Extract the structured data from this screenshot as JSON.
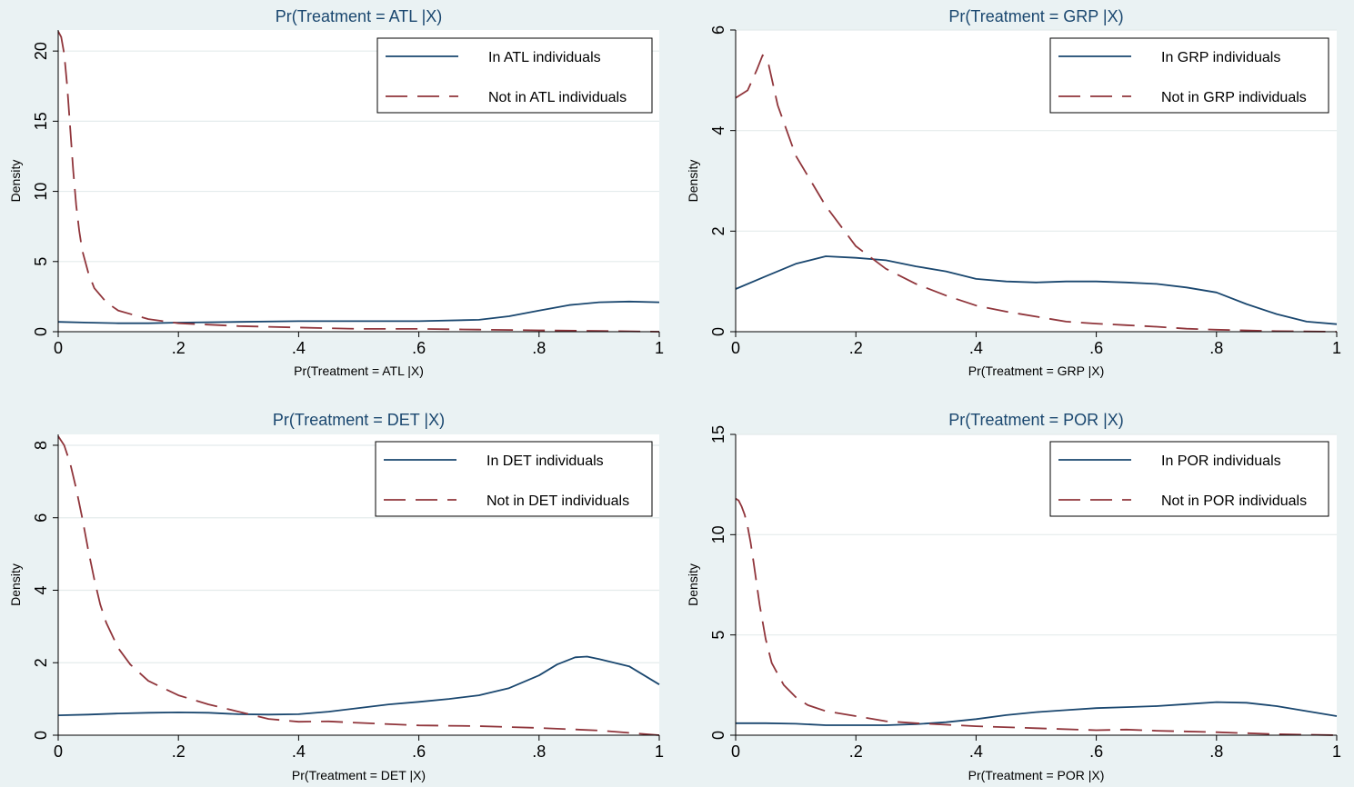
{
  "colors": {
    "background": "#eaf2f3",
    "plot_area": "#ffffff",
    "grid": "#e4ebec",
    "title": "#1a476f",
    "treated_line": "#1a476f",
    "untreated_line": "#90353b",
    "axis_text": "#000000"
  },
  "chart_data": [
    {
      "id": "atl",
      "type": "line",
      "title": "Pr(Treatment = ATL |X)",
      "xlabel": "Pr(Treatment = ATL |X)",
      "ylabel": "Density",
      "xlim": [
        0,
        1
      ],
      "ylim": [
        0,
        21.5
      ],
      "xticks": [
        0,
        0.2,
        0.4,
        0.6,
        0.8,
        1
      ],
      "xtick_labels": [
        "0",
        ".2",
        ".4",
        ".6",
        ".8",
        "1"
      ],
      "yticks": [
        0,
        5,
        10,
        15,
        20
      ],
      "ytick_labels": [
        "0",
        "5",
        "10",
        "15",
        "20"
      ],
      "grid": true,
      "legend_position": "top-right",
      "series": [
        {
          "name": "In ATL individuals",
          "style": "solid",
          "x": [
            0,
            0.05,
            0.1,
            0.15,
            0.2,
            0.3,
            0.4,
            0.5,
            0.6,
            0.7,
            0.75,
            0.8,
            0.85,
            0.9,
            0.95,
            1.0
          ],
          "y": [
            0.7,
            0.65,
            0.6,
            0.6,
            0.65,
            0.7,
            0.75,
            0.75,
            0.75,
            0.85,
            1.1,
            1.5,
            1.9,
            2.1,
            2.15,
            2.1
          ]
        },
        {
          "name": "Not in ATL individuals",
          "style": "dashed",
          "x": [
            0,
            0.005,
            0.01,
            0.015,
            0.02,
            0.025,
            0.03,
            0.035,
            0.04,
            0.05,
            0.06,
            0.08,
            0.1,
            0.15,
            0.2,
            0.3,
            0.4,
            0.5,
            0.6,
            0.7,
            0.8,
            0.9,
            1.0
          ],
          "y": [
            21.4,
            21.0,
            19.8,
            17.5,
            14.5,
            11.5,
            9.0,
            7.2,
            5.8,
            4.2,
            3.1,
            2.1,
            1.5,
            0.9,
            0.6,
            0.4,
            0.3,
            0.2,
            0.2,
            0.15,
            0.1,
            0.05,
            0.0
          ]
        }
      ]
    },
    {
      "id": "grp",
      "type": "line",
      "title": "Pr(Treatment = GRP |X)",
      "xlabel": "Pr(Treatment = GRP |X)",
      "ylabel": "Density",
      "xlim": [
        0,
        1
      ],
      "ylim": [
        0,
        6
      ],
      "xticks": [
        0,
        0.2,
        0.4,
        0.6,
        0.8,
        1
      ],
      "xtick_labels": [
        "0",
        ".2",
        ".4",
        ".6",
        ".8",
        "1"
      ],
      "yticks": [
        0,
        2,
        4,
        6
      ],
      "ytick_labels": [
        "0",
        "2",
        "4",
        "6"
      ],
      "grid": true,
      "legend_position": "top-right",
      "series": [
        {
          "name": "In GRP individuals",
          "style": "solid",
          "x": [
            0,
            0.05,
            0.1,
            0.15,
            0.2,
            0.25,
            0.3,
            0.35,
            0.4,
            0.45,
            0.5,
            0.55,
            0.6,
            0.65,
            0.7,
            0.75,
            0.8,
            0.85,
            0.9,
            0.95,
            1.0
          ],
          "y": [
            0.85,
            1.1,
            1.35,
            1.5,
            1.47,
            1.42,
            1.3,
            1.2,
            1.05,
            1.0,
            0.98,
            1.0,
            1.0,
            0.98,
            0.95,
            0.88,
            0.78,
            0.55,
            0.35,
            0.2,
            0.15
          ]
        },
        {
          "name": "Not in GRP individuals",
          "style": "dashed",
          "x": [
            0,
            0.02,
            0.035,
            0.045,
            0.055,
            0.07,
            0.1,
            0.15,
            0.2,
            0.25,
            0.3,
            0.35,
            0.4,
            0.45,
            0.5,
            0.55,
            0.6,
            0.65,
            0.7,
            0.75,
            0.8,
            0.9,
            1.0
          ],
          "y": [
            4.65,
            4.8,
            5.2,
            5.5,
            5.3,
            4.5,
            3.5,
            2.5,
            1.7,
            1.25,
            0.95,
            0.72,
            0.52,
            0.4,
            0.3,
            0.2,
            0.16,
            0.13,
            0.1,
            0.06,
            0.04,
            0.01,
            0.0
          ]
        }
      ]
    },
    {
      "id": "det",
      "type": "line",
      "title": "Pr(Treatment = DET |X)",
      "xlabel": "Pr(Treatment = DET |X)",
      "ylabel": "Density",
      "xlim": [
        0,
        1
      ],
      "ylim": [
        0,
        8.3
      ],
      "xticks": [
        0,
        0.2,
        0.4,
        0.6,
        0.8,
        1
      ],
      "xtick_labels": [
        "0",
        ".2",
        ".4",
        ".6",
        ".8",
        "1"
      ],
      "yticks": [
        0,
        2,
        4,
        6,
        8
      ],
      "ytick_labels": [
        "0",
        "2",
        "4",
        "6",
        "8"
      ],
      "grid": true,
      "legend_position": "top-right",
      "series": [
        {
          "name": "In DET individuals",
          "style": "solid",
          "x": [
            0,
            0.05,
            0.1,
            0.15,
            0.2,
            0.25,
            0.3,
            0.35,
            0.4,
            0.45,
            0.5,
            0.55,
            0.6,
            0.65,
            0.7,
            0.75,
            0.8,
            0.83,
            0.86,
            0.88,
            0.9,
            0.95,
            1.0
          ],
          "y": [
            0.55,
            0.57,
            0.6,
            0.62,
            0.63,
            0.62,
            0.58,
            0.57,
            0.58,
            0.65,
            0.75,
            0.85,
            0.92,
            1.0,
            1.1,
            1.3,
            1.65,
            1.95,
            2.15,
            2.17,
            2.1,
            1.9,
            1.4
          ]
        },
        {
          "name": "Not in DET individuals",
          "style": "dashed",
          "x": [
            0,
            0.01,
            0.02,
            0.03,
            0.04,
            0.05,
            0.06,
            0.07,
            0.08,
            0.1,
            0.12,
            0.15,
            0.2,
            0.25,
            0.3,
            0.35,
            0.4,
            0.45,
            0.5,
            0.6,
            0.7,
            0.8,
            0.9,
            1.0
          ],
          "y": [
            8.25,
            8.0,
            7.5,
            6.8,
            6.0,
            5.1,
            4.3,
            3.6,
            3.1,
            2.4,
            1.95,
            1.5,
            1.1,
            0.85,
            0.65,
            0.45,
            0.37,
            0.38,
            0.34,
            0.27,
            0.25,
            0.2,
            0.13,
            0.0
          ]
        }
      ]
    },
    {
      "id": "por",
      "type": "line",
      "title": "Pr(Treatment = POR |X)",
      "xlabel": "Pr(Treatment = POR |X)",
      "ylabel": "Density",
      "xlim": [
        0,
        1
      ],
      "ylim": [
        0,
        15
      ],
      "xticks": [
        0,
        0.2,
        0.4,
        0.6,
        0.8,
        1
      ],
      "xtick_labels": [
        "0",
        ".2",
        ".4",
        ".6",
        ".8",
        "1"
      ],
      "yticks": [
        0,
        5,
        10,
        15
      ],
      "ytick_labels": [
        "0",
        "5",
        "10",
        "15"
      ],
      "grid": true,
      "legend_position": "top-right",
      "series": [
        {
          "name": "In POR individuals",
          "style": "solid",
          "x": [
            0,
            0.05,
            0.1,
            0.15,
            0.2,
            0.25,
            0.3,
            0.35,
            0.4,
            0.45,
            0.5,
            0.55,
            0.6,
            0.65,
            0.7,
            0.75,
            0.8,
            0.85,
            0.9,
            0.95,
            1.0
          ],
          "y": [
            0.6,
            0.6,
            0.57,
            0.5,
            0.5,
            0.5,
            0.55,
            0.65,
            0.8,
            1.0,
            1.15,
            1.25,
            1.35,
            1.4,
            1.45,
            1.55,
            1.65,
            1.62,
            1.45,
            1.2,
            0.95
          ]
        },
        {
          "name": "Not in POR individuals",
          "style": "dashed",
          "x": [
            0,
            0.005,
            0.01,
            0.015,
            0.02,
            0.025,
            0.03,
            0.04,
            0.05,
            0.06,
            0.08,
            0.1,
            0.12,
            0.15,
            0.2,
            0.25,
            0.3,
            0.4,
            0.5,
            0.6,
            0.65,
            0.7,
            0.8,
            0.9,
            1.0
          ],
          "y": [
            11.8,
            11.7,
            11.4,
            11.0,
            10.4,
            9.6,
            8.6,
            6.5,
            4.8,
            3.6,
            2.5,
            1.9,
            1.5,
            1.2,
            0.95,
            0.7,
            0.6,
            0.45,
            0.35,
            0.25,
            0.28,
            0.22,
            0.15,
            0.05,
            0.0
          ]
        }
      ]
    }
  ]
}
